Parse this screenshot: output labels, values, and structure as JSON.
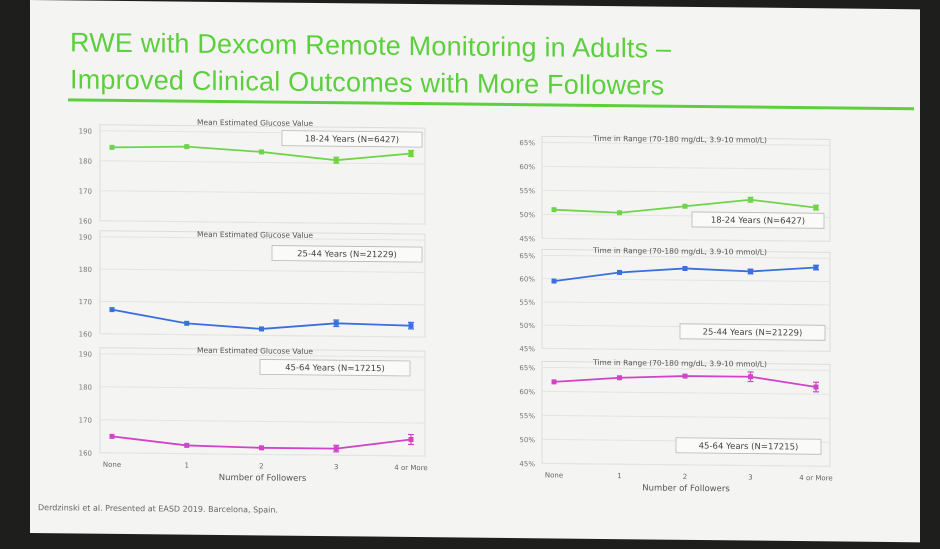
{
  "slide": {
    "title_line1": "RWE with Dexcom Remote Monitoring in Adults –",
    "title_line2": "Improved Clinical Outcomes with More Followers",
    "footnote": "Derdzinski et al.  Presented at EASD 2019.  Barcelona, Spain.",
    "accent_color": "#5ccf3c"
  },
  "chart_data": [
    {
      "type": "line",
      "title": "Mean Estimated Glucose Value",
      "legend": "18-24 Years (N=6427)",
      "legend_position": "top-right",
      "categories": [
        "None",
        "1",
        "2",
        "3",
        "4 or More"
      ],
      "values": [
        184.5,
        185,
        183.5,
        181,
        183.5
      ],
      "error": [
        0,
        0,
        0,
        1,
        1
      ],
      "yticks": [
        "190",
        "180",
        "170",
        "160"
      ],
      "ylim": [
        160,
        190
      ],
      "color": "#6fd44a",
      "show_xaxis": false,
      "grid": true
    },
    {
      "type": "line",
      "title": "Mean Estimated Glucose Value",
      "legend": "25-44 Years (N=21229)",
      "legend_position": "top-right",
      "categories": [
        "None",
        "1",
        "2",
        "3",
        "4 or More"
      ],
      "values": [
        167.5,
        163.5,
        162,
        164,
        163.5
      ],
      "error": [
        0,
        0,
        0,
        1,
        1
      ],
      "yticks": [
        "190",
        "180",
        "170",
        "160"
      ],
      "ylim": [
        160,
        190
      ],
      "color": "#3a6fe0",
      "show_xaxis": false,
      "grid": true
    },
    {
      "type": "line",
      "title": "Mean Estimated Glucose Value",
      "legend": "45-64 Years (N=17215)",
      "legend_position": "top-right",
      "categories": [
        "None",
        "1",
        "2",
        "3",
        "4 or More"
      ],
      "values": [
        165,
        162.5,
        162,
        162,
        165
      ],
      "error": [
        0,
        0,
        0,
        1,
        1.5
      ],
      "yticks": [
        "190",
        "180",
        "170",
        "160"
      ],
      "ylim": [
        160,
        190
      ],
      "color": "#d243c8",
      "show_xaxis": true,
      "xlabel": "Number of Followers",
      "grid": true
    },
    {
      "type": "line",
      "title": "Time in Range (70-180 mg/dL, 3.9-10 mmol/L)",
      "legend": "18-24 Years (N=6427)",
      "legend_position": "bottom-right",
      "categories": [
        "None",
        "1",
        "2",
        "3",
        "4 or More"
      ],
      "values": [
        51,
        50.5,
        52,
        53.5,
        52
      ],
      "error": [
        0,
        0,
        0,
        0.5,
        0.5
      ],
      "yticks": [
        "65%",
        "60%",
        "55%",
        "50%",
        "45%"
      ],
      "ylim": [
        45,
        65
      ],
      "color": "#6fd44a",
      "show_xaxis": false,
      "grid": true
    },
    {
      "type": "line",
      "title": "Time in Range (70-180 mg/dL, 3.9-10 mmol/L)",
      "legend": "25-44 Years (N=21229)",
      "legend_position": "bottom-right",
      "categories": [
        "None",
        "1",
        "2",
        "3",
        "4 or More"
      ],
      "values": [
        59.5,
        61.5,
        62.5,
        62,
        63
      ],
      "error": [
        0,
        0,
        0,
        0.5,
        0.5
      ],
      "yticks": [
        "65%",
        "60%",
        "55%",
        "50%",
        "45%"
      ],
      "ylim": [
        45,
        65
      ],
      "color": "#3a6fe0",
      "show_xaxis": false,
      "grid": true
    },
    {
      "type": "line",
      "title": "Time in Range (70-180 mg/dL, 3.9-10 mmol/L)",
      "legend": "45-64 Years (N=17215)",
      "legend_position": "bottom-right",
      "categories": [
        "None",
        "1",
        "2",
        "3",
        "4 or More"
      ],
      "values": [
        62,
        63,
        63.5,
        63.5,
        61.5
      ],
      "error": [
        0,
        0,
        0,
        1,
        1
      ],
      "yticks": [
        "65%",
        "60%",
        "55%",
        "50%",
        "45%"
      ],
      "ylim": [
        45,
        65
      ],
      "color": "#d243c8",
      "show_xaxis": true,
      "xlabel": "Number of Followers",
      "grid": true
    }
  ]
}
